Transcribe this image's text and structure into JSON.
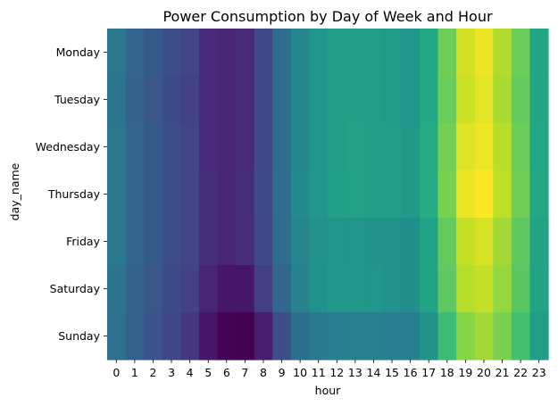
{
  "chart_data": {
    "type": "heatmap",
    "title": "Power Consumption by Day of Week and Hour",
    "xlabel": "hour",
    "ylabel": "day_name",
    "x_categories": [
      "0",
      "1",
      "2",
      "3",
      "4",
      "5",
      "6",
      "7",
      "8",
      "9",
      "10",
      "11",
      "12",
      "13",
      "14",
      "15",
      "16",
      "17",
      "18",
      "19",
      "20",
      "21",
      "22",
      "23"
    ],
    "y_categories": [
      "Monday",
      "Tuesday",
      "Wednesday",
      "Thursday",
      "Friday",
      "Saturday",
      "Sunday"
    ],
    "colormap": "viridis",
    "colorbar": false,
    "value_scale": [
      0,
      1
    ],
    "values": [
      [
        0.4,
        0.32,
        0.28,
        0.24,
        0.2,
        0.12,
        0.1,
        0.12,
        0.22,
        0.35,
        0.46,
        0.52,
        0.55,
        0.56,
        0.55,
        0.54,
        0.52,
        0.6,
        0.78,
        0.93,
        0.97,
        0.88,
        0.77,
        0.59
      ],
      [
        0.39,
        0.31,
        0.27,
        0.23,
        0.19,
        0.12,
        0.1,
        0.12,
        0.22,
        0.35,
        0.46,
        0.52,
        0.55,
        0.56,
        0.55,
        0.54,
        0.52,
        0.6,
        0.77,
        0.92,
        0.96,
        0.87,
        0.76,
        0.59
      ],
      [
        0.4,
        0.32,
        0.28,
        0.24,
        0.2,
        0.12,
        0.1,
        0.12,
        0.22,
        0.35,
        0.46,
        0.52,
        0.55,
        0.57,
        0.56,
        0.55,
        0.53,
        0.61,
        0.79,
        0.95,
        0.98,
        0.89,
        0.77,
        0.6
      ],
      [
        0.4,
        0.32,
        0.28,
        0.24,
        0.2,
        0.13,
        0.1,
        0.13,
        0.23,
        0.35,
        0.47,
        0.53,
        0.56,
        0.57,
        0.56,
        0.55,
        0.53,
        0.61,
        0.8,
        0.97,
        1.0,
        0.9,
        0.78,
        0.6
      ],
      [
        0.4,
        0.32,
        0.28,
        0.24,
        0.2,
        0.13,
        0.1,
        0.13,
        0.22,
        0.35,
        0.45,
        0.5,
        0.52,
        0.52,
        0.51,
        0.5,
        0.49,
        0.58,
        0.76,
        0.91,
        0.94,
        0.86,
        0.75,
        0.58
      ],
      [
        0.38,
        0.31,
        0.27,
        0.23,
        0.19,
        0.1,
        0.06,
        0.06,
        0.18,
        0.33,
        0.44,
        0.5,
        0.53,
        0.53,
        0.52,
        0.5,
        0.49,
        0.58,
        0.75,
        0.89,
        0.91,
        0.84,
        0.74,
        0.58
      ],
      [
        0.37,
        0.3,
        0.26,
        0.21,
        0.16,
        0.06,
        0.01,
        0.0,
        0.08,
        0.24,
        0.36,
        0.41,
        0.42,
        0.43,
        0.43,
        0.42,
        0.42,
        0.51,
        0.68,
        0.82,
        0.86,
        0.8,
        0.7,
        0.55
      ]
    ]
  }
}
